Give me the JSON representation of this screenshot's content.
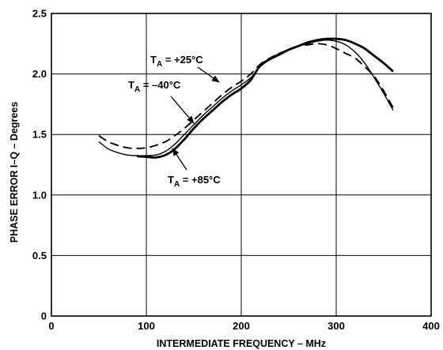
{
  "chart_data": {
    "type": "line",
    "xlabel": "INTERMEDIATE FREQUENCY – MHz",
    "ylabel": "PHASE ERROR I–Q – Degrees",
    "xlim": [
      0,
      400
    ],
    "ylim": [
      0,
      2.5
    ],
    "x_ticks": [
      "0",
      "100",
      "200",
      "300",
      "400"
    ],
    "y_ticks": [
      "0",
      "0.5",
      "1.0",
      "1.5",
      "2.0",
      "2.5"
    ],
    "grid": true,
    "annotations": [
      {
        "prefix": "T",
        "sub": "A",
        "text": " = +25°C"
      },
      {
        "prefix": "T",
        "sub": "A",
        "text": " = –40°C"
      },
      {
        "prefix": "T",
        "sub": "A",
        "text": " = +85°C"
      }
    ],
    "series": [
      {
        "line_style": "dashed",
        "stroke_width": "medium",
        "x": [
          50,
          60,
          70,
          80,
          90,
          100,
          110,
          120,
          130,
          140,
          150,
          160,
          170,
          180,
          190,
          200,
          210,
          220,
          230,
          240,
          250,
          260,
          270,
          280,
          290,
          300,
          310,
          320,
          330,
          340,
          350,
          360
        ],
        "y": [
          1.49,
          1.44,
          1.41,
          1.39,
          1.385,
          1.39,
          1.41,
          1.44,
          1.49,
          1.55,
          1.62,
          1.69,
          1.76,
          1.83,
          1.89,
          1.94,
          2.0,
          2.08,
          2.13,
          2.17,
          2.2,
          2.23,
          2.24,
          2.25,
          2.24,
          2.21,
          2.17,
          2.13,
          2.06,
          1.98,
          1.86,
          1.72
        ]
      },
      {
        "line_style": "solid",
        "stroke_width": "thin",
        "x": [
          50,
          60,
          70,
          80,
          90,
          100,
          110,
          120,
          130,
          140,
          150,
          160,
          170,
          180,
          190,
          200,
          210,
          220,
          230,
          240,
          250,
          260,
          270,
          280,
          290,
          300,
          310,
          320,
          330,
          340,
          350,
          360
        ],
        "y": [
          1.44,
          1.38,
          1.35,
          1.33,
          1.325,
          1.325,
          1.33,
          1.36,
          1.42,
          1.5,
          1.58,
          1.66,
          1.73,
          1.8,
          1.86,
          1.91,
          1.97,
          2.06,
          2.12,
          2.17,
          2.2,
          2.23,
          2.25,
          2.27,
          2.28,
          2.27,
          2.24,
          2.18,
          2.09,
          1.97,
          1.84,
          1.7
        ]
      },
      {
        "line_style": "solid",
        "stroke_width": "thick",
        "x": [
          90,
          100,
          110,
          120,
          130,
          140,
          150,
          160,
          170,
          180,
          190,
          200,
          210,
          220,
          230,
          240,
          250,
          260,
          270,
          280,
          290,
          300,
          310,
          320,
          330,
          340,
          350,
          360
        ],
        "y": [
          1.32,
          1.315,
          1.31,
          1.33,
          1.38,
          1.46,
          1.55,
          1.63,
          1.7,
          1.77,
          1.83,
          1.88,
          1.95,
          2.07,
          2.12,
          2.16,
          2.2,
          2.23,
          2.26,
          2.28,
          2.29,
          2.29,
          2.28,
          2.25,
          2.21,
          2.15,
          2.09,
          2.02
        ]
      }
    ]
  }
}
